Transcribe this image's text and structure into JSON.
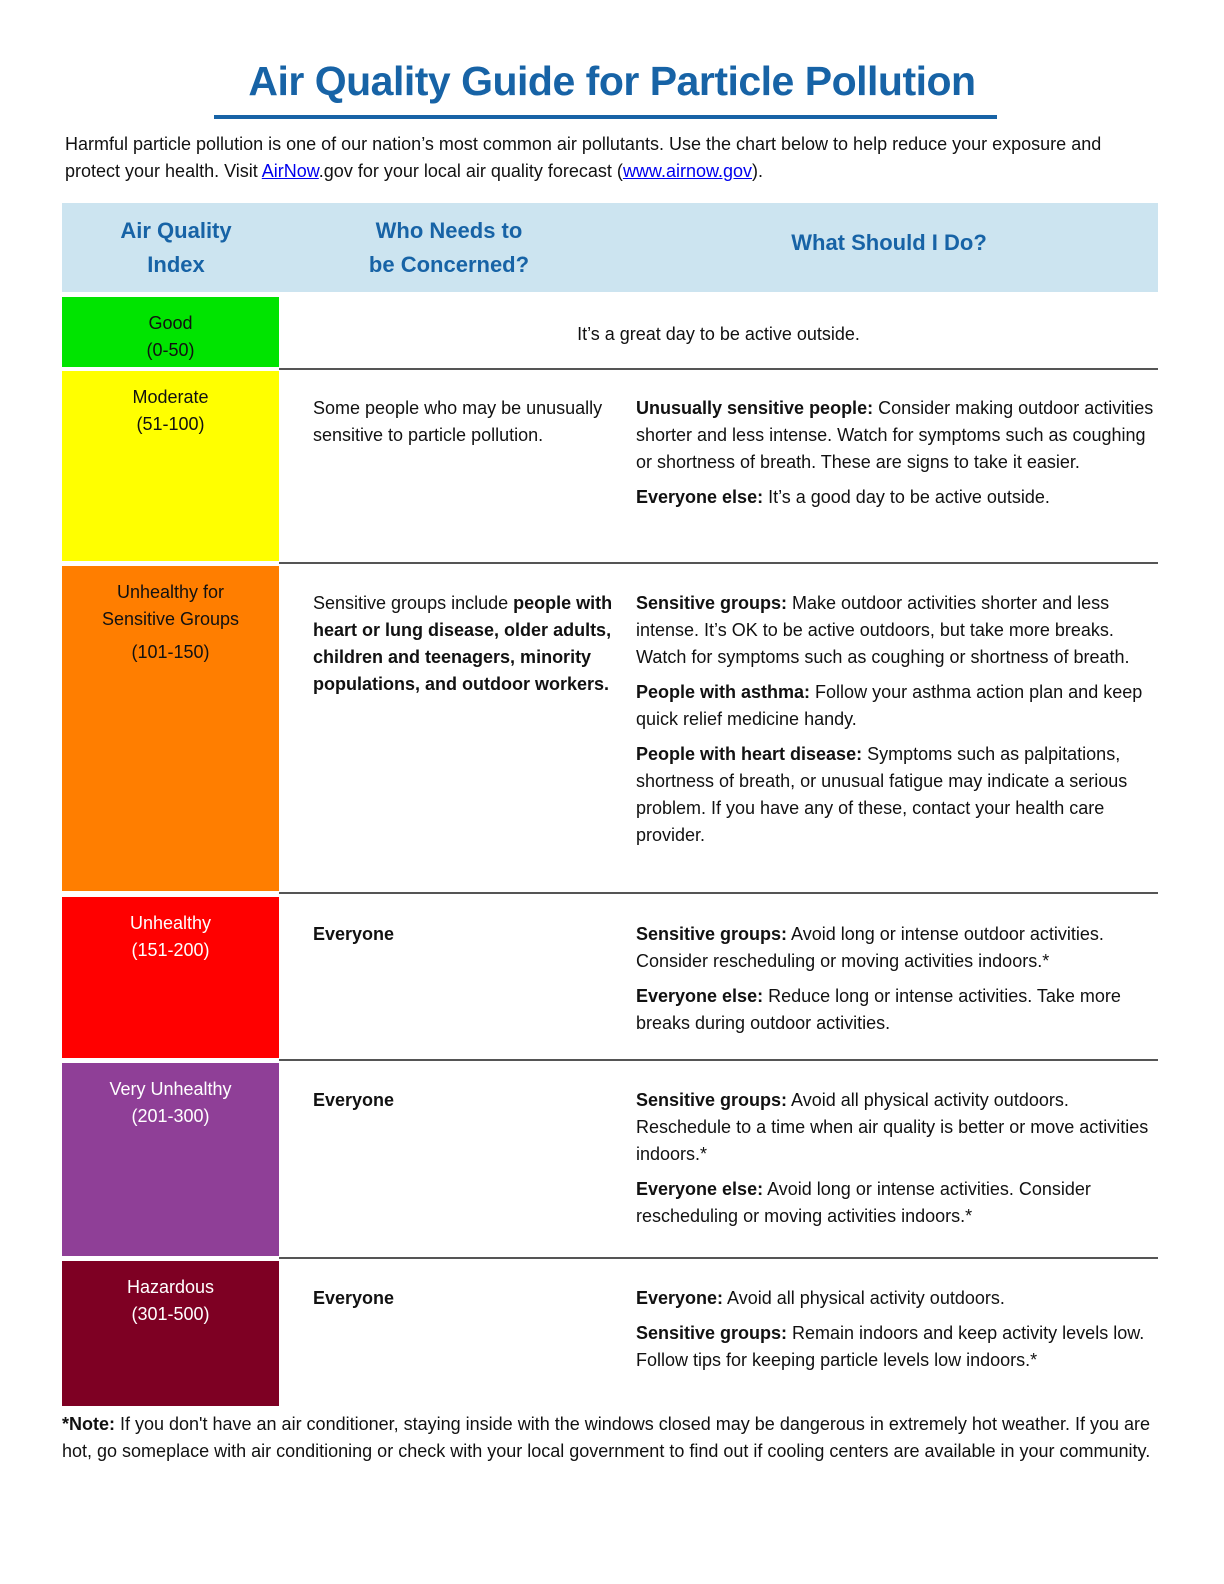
{
  "title": "Air Quality Guide for Particle Pollution",
  "intro": {
    "text1": "Harmful particle pollution is one of our nation’s most common air pollutants. Use the chart below to help reduce your exposure and protect your health. Visit ",
    "link1": "AirNow",
    "text2": ".gov for your local air quality forecast (",
    "link2": "www.airnow.gov",
    "text3": ")."
  },
  "table_header": {
    "col1_line1": "Air Quality",
    "col1_line2": "Index",
    "col2_line1": "Who Needs to",
    "col2_line2": "be Concerned?",
    "col3": "What Should I Do?",
    "bg_color": "#cce4f0"
  },
  "rows": [
    {
      "category": "Good",
      "range": "(0-50)",
      "color": "#00e400",
      "text_color": "#111111",
      "message": "It’s a great day to be active outside."
    },
    {
      "category": "Moderate",
      "range": "(51-100)",
      "color": "#ffff00",
      "text_color": "#111111",
      "who": "Some people who may be unusually sensitive to particle pollution.",
      "actions": [
        {
          "label": "Unusually sensitive people:",
          "text": " Consider making outdoor activities shorter and less intense. Watch for symptoms such as coughing or shortness of breath. These are signs to take it easier."
        },
        {
          "label": "Everyone else:",
          "text": " It’s a good day to be active outside."
        }
      ]
    },
    {
      "category": "Unhealthy for Sensitive Groups",
      "range": "(101-150)",
      "color": "#ff7e00",
      "text_color": "#111111",
      "who_prefix": "Sensitive groups include ",
      "who": "people with heart or lung disease, older adults, children and teenagers, minority populations, and outdoor workers.",
      "actions": [
        {
          "label": "Sensitive groups:",
          "text": " Make outdoor activities shorter and less intense. It’s OK to be active outdoors, but take more breaks. Watch for symptoms such as coughing or shortness of breath."
        },
        {
          "label": "People with asthma:",
          "text": " Follow your asthma action plan and keep quick relief medicine handy."
        },
        {
          "label": "People with heart disease:",
          "text": " Symptoms such as palpitations, shortness of breath, or unusual fatigue may indicate a serious problem. If you have any of these, contact your health care provider."
        }
      ]
    },
    {
      "category": "Unhealthy",
      "range": "(151-200)",
      "color": "#ff0000",
      "text_color": "#ffffff",
      "who": "Everyone",
      "actions": [
        {
          "label": "Sensitive groups:",
          "text": " Avoid long or intense outdoor activities. Consider rescheduling or moving activities indoors.*"
        },
        {
          "label": "Everyone else:",
          "text": " Reduce long or intense activities. Take more breaks during outdoor activities."
        }
      ]
    },
    {
      "category": "Very Unhealthy",
      "range": "(201-300)",
      "color": "#8f3f97",
      "text_color": "#ffffff",
      "who": "Everyone",
      "actions": [
        {
          "label": "Sensitive groups:",
          "text": " Avoid all physical activity outdoors. Reschedule to a time when air quality is better or move activities indoors.*"
        },
        {
          "label": "Everyone else:",
          "text": " Avoid long or intense activities. Consider rescheduling or moving activities indoors.*"
        }
      ]
    },
    {
      "category": "Hazardous",
      "range": "(301-500)",
      "color": "#7e0023",
      "text_color": "#ffffff",
      "who": "Everyone",
      "actions": [
        {
          "label": "Everyone:",
          "text": " Avoid all physical activity outdoors."
        },
        {
          "label": "Sensitive groups:",
          "text": " Remain indoors and keep activity levels low. Follow tips for keeping particle levels low indoors.*"
        }
      ]
    }
  ],
  "note": {
    "label": "*Note:",
    "text": " If you don't have an air conditioner, staying inside with the windows closed may be dangerous in extremely hot weather. If you are hot, go someplace with air conditioning or check with your local government to find out if cooling centers are available in your community."
  }
}
